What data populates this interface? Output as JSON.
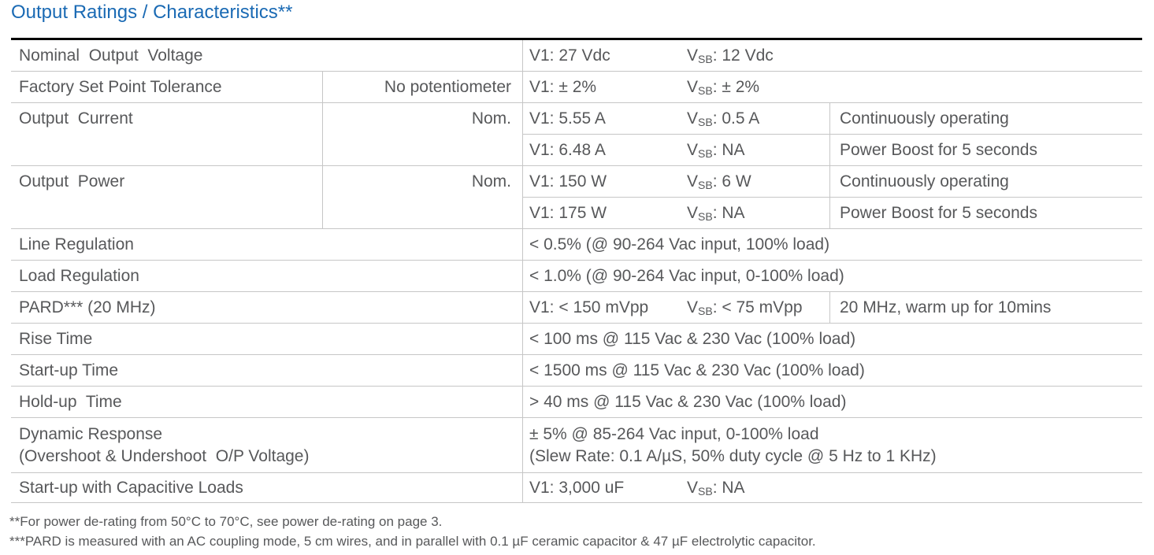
{
  "title": "Output Ratings / Characteristics**",
  "labels": {
    "v": "V",
    "sb": "SB"
  },
  "colors": {
    "title_blue": "#1a6ab4",
    "body_text": "#57585a",
    "grid_line": "#c6c6c6",
    "table_top_border": "#000000"
  },
  "table": {
    "rows": [
      {
        "label": "Nominal  Output  Voltage",
        "v1": "V1: 27 Vdc",
        "vsb_rest": ": 12 Vdc"
      },
      {
        "label": "Factory Set Point Tolerance",
        "note": "No potentiometer",
        "v1": "V1: ± 2%",
        "vsb_rest": ": ± 2%"
      },
      {
        "label": "Output  Current",
        "note": "Nom.",
        "sub": [
          {
            "v1": "V1: 5.55 A",
            "vsb_rest": ": 0.5 A",
            "cond": "Continuously operating"
          },
          {
            "v1": "V1: 6.48 A",
            "vsb_rest": ": NA",
            "cond": "Power Boost for 5 seconds"
          }
        ]
      },
      {
        "label": "Output  Power",
        "note": "Nom.",
        "sub": [
          {
            "v1": "V1: 150 W",
            "vsb_rest": ": 6 W",
            "cond": "Continuously operating"
          },
          {
            "v1": "V1: 175 W",
            "vsb_rest": ": NA",
            "cond": "Power Boost for 5 seconds"
          }
        ]
      },
      {
        "label": "Line Regulation",
        "value": "< 0.5% (@ 90-264 Vac input, 100% load)"
      },
      {
        "label": "Load Regulation",
        "value": "< 1.0% (@ 90-264 Vac input, 0-100% load)"
      },
      {
        "label": "PARD*** (20 MHz)",
        "v1": "V1: < 150 mVpp",
        "vsb_rest": ": < 75 mVpp",
        "cond": "20 MHz, warm up for 10mins"
      },
      {
        "label": "Rise Time",
        "value": "< 100 ms @ 115 Vac & 230 Vac (100% load)"
      },
      {
        "label": "Start-up Time",
        "value": "< 1500 ms @ 115 Vac & 230 Vac (100% load)"
      },
      {
        "label": "Hold-up  Time",
        "value": "> 40 ms @ 115 Vac & 230 Vac (100% load)"
      },
      {
        "label1": "Dynamic Response",
        "label2": "(Overshoot & Undershoot  O/P Voltage)",
        "value1": "± 5% @ 85-264 Vac input, 0-100% load",
        "value2": "(Slew Rate: 0.1 A/µS, 50% duty cycle @ 5 Hz to 1 KHz)"
      },
      {
        "label": "Start-up with Capacitive Loads",
        "v1": "V1: 3,000 uF",
        "vsb_rest": ": NA"
      }
    ]
  },
  "footnotes": [
    "**For power de-rating from 50°C to 70°C, see power de-rating on page 3.",
    "***PARD is measured with an AC coupling mode, 5 cm wires, and in parallel with 0.1 µF ceramic capacitor & 47 µF electrolytic capacitor."
  ]
}
